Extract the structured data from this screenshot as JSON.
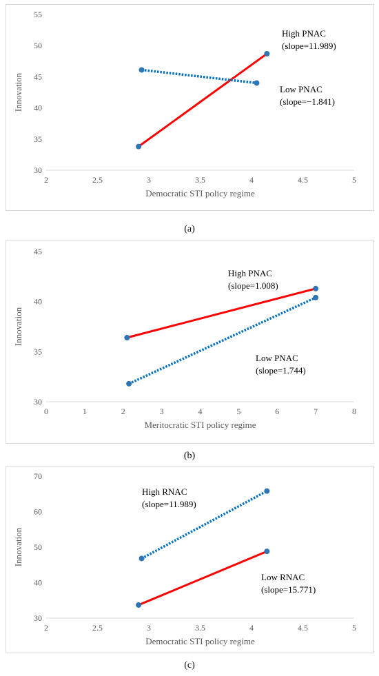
{
  "chart_data": [
    {
      "panel_label": "(a)",
      "type": "line",
      "xlabel": "Democratic STI policy regime",
      "ylabel": "Innovation",
      "xlim": [
        2,
        5
      ],
      "ylim": [
        30,
        55
      ],
      "xticks": [
        "2",
        "2.5",
        "3",
        "3.5",
        "4",
        "4.5",
        "5"
      ],
      "yticks": [
        "30",
        "35",
        "40",
        "45",
        "50",
        "55"
      ],
      "grid": false,
      "series": [
        {
          "style": "solid",
          "color": "#ff0000",
          "points": [
            {
              "x": 2.9,
              "y": 33.8
            },
            {
              "x": 4.15,
              "y": 48.7
            }
          ],
          "annotation": [
            "High PNAC",
            "(slope=11.989)"
          ]
        },
        {
          "style": "dotted",
          "color": "#0070c0",
          "points": [
            {
              "x": 2.93,
              "y": 46.1
            },
            {
              "x": 4.05,
              "y": 44.0
            }
          ],
          "annotation": [
            "Low PNAC",
            "(slope=−1.841)"
          ]
        }
      ]
    },
    {
      "panel_label": "(b)",
      "type": "line",
      "xlabel": "Meritocratic STI policy regime",
      "ylabel": "Innovation",
      "xlim": [
        0,
        8
      ],
      "ylim": [
        30,
        45
      ],
      "xticks": [
        "0",
        "1",
        "2",
        "3",
        "4",
        "5",
        "6",
        "7",
        "8"
      ],
      "yticks": [
        "30",
        "35",
        "40",
        "45"
      ],
      "grid": false,
      "series": [
        {
          "style": "solid",
          "color": "#ff0000",
          "points": [
            {
              "x": 2.1,
              "y": 36.4
            },
            {
              "x": 7.0,
              "y": 41.3
            }
          ],
          "annotation": [
            "High PNAC",
            "(slope=1.008)"
          ]
        },
        {
          "style": "dotted",
          "color": "#0070c0",
          "points": [
            {
              "x": 2.15,
              "y": 31.8
            },
            {
              "x": 7.0,
              "y": 40.4
            }
          ],
          "annotation": [
            "Low PNAC",
            "(slope=1.744)"
          ]
        }
      ]
    },
    {
      "panel_label": "(c)",
      "type": "line",
      "xlabel": "Democratic STI policy regime",
      "ylabel": "Innovation",
      "xlim": [
        2,
        5
      ],
      "ylim": [
        30,
        70
      ],
      "xticks": [
        "2",
        "2.5",
        "3",
        "3.5",
        "4",
        "4.5",
        "5"
      ],
      "yticks": [
        "30",
        "40",
        "50",
        "60",
        "70"
      ],
      "grid": false,
      "series": [
        {
          "style": "solid",
          "color": "#ff0000",
          "points": [
            {
              "x": 2.9,
              "y": 33.7
            },
            {
              "x": 4.15,
              "y": 48.8
            }
          ],
          "annotation": [
            "High RNAC",
            "(slope=11.989)"
          ]
        },
        {
          "style": "dotted",
          "color": "#0070c0",
          "points": [
            {
              "x": 2.93,
              "y": 46.8
            },
            {
              "x": 4.15,
              "y": 65.8
            }
          ],
          "annotation": [
            "Low RNAC",
            "(slope=15.771)"
          ]
        }
      ]
    }
  ]
}
